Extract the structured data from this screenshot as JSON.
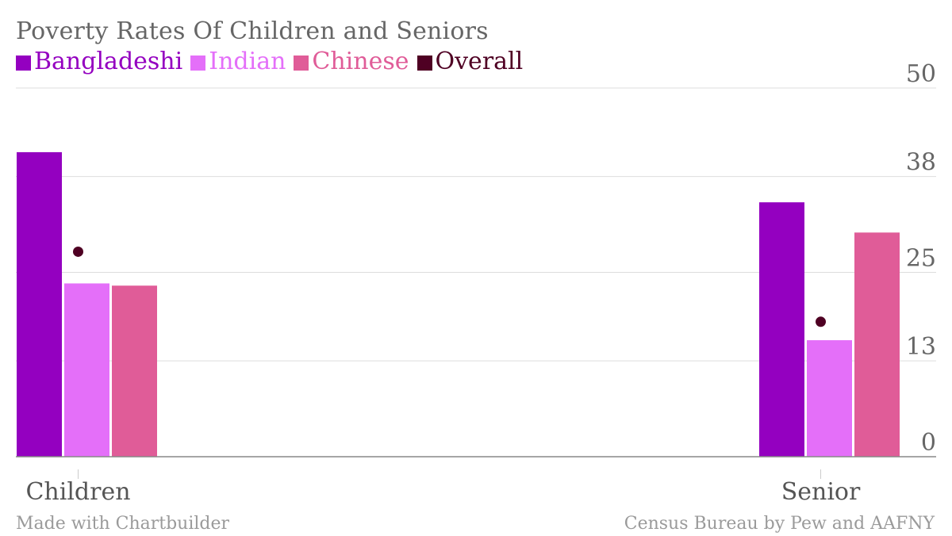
{
  "chart_data": {
    "type": "bar",
    "title": "Poverty Rates Of Children and Seniors",
    "categories": [
      "Children",
      "Senior"
    ],
    "series": [
      {
        "name": "Bangladeshi",
        "color": "#9400c0",
        "values": [
          41.3,
          34.5
        ]
      },
      {
        "name": "Indian",
        "color": "#e46ff9",
        "values": [
          23.5,
          15.8
        ]
      },
      {
        "name": "Chinese",
        "color": "#e05c98",
        "values": [
          23.2,
          30.4
        ]
      }
    ],
    "overall": {
      "name": "Overall",
      "color": "#4f0023",
      "values": [
        27.8,
        18.3
      ]
    },
    "y_ticks": [
      0,
      13,
      25,
      38,
      50
    ],
    "y_tick_labels": [
      "0",
      "13",
      "25",
      "38",
      "50"
    ],
    "ylim": [
      0,
      50
    ],
    "grid": true,
    "legend_position": "top-left",
    "xlabel": "",
    "ylabel": ""
  },
  "footer": {
    "left": "Made with Chartbuilder",
    "right": "Census Bureau by Pew and AAFNY"
  }
}
